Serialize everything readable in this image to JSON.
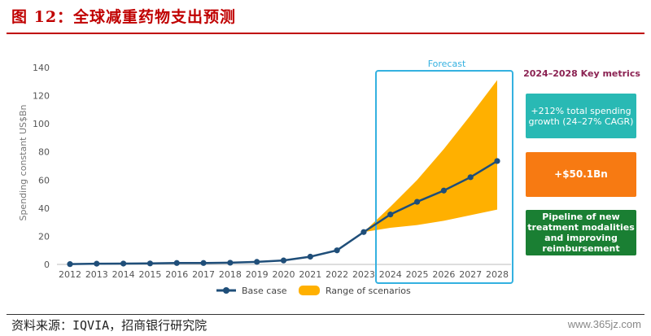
{
  "figure_title": "图 12：全球减重药物支出预测",
  "source": "资料来源：IQVIA，招商银行研究院",
  "watermark": "www.365jz.com",
  "colors": {
    "title_red": "#c00000",
    "base_line": "#1f4e79",
    "range_fill": "#ffb000",
    "forecast_border": "#34b1e0",
    "box1": "#29b9b4",
    "box2": "#f77a12",
    "box3": "#1a7f33",
    "metric_title": "#8b2252"
  },
  "key_metrics": {
    "title": "2024–2028 Key metrics",
    "box1": "+212% total spending growth (24–27% CAGR)",
    "box2": "+$50.1Bn",
    "box3": "Pipeline of new treatment modalities and improving reimbursement"
  },
  "chart_data": {
    "type": "line",
    "title": "",
    "ylabel": "Spending constant US$Bn",
    "xlabel": "",
    "ylim": [
      0,
      140
    ],
    "yticks": [
      0,
      20,
      40,
      60,
      80,
      100,
      120,
      140
    ],
    "categories": [
      "2012",
      "2013",
      "2014",
      "2015",
      "2016",
      "2017",
      "2018",
      "2019",
      "2020",
      "2021",
      "2022",
      "2023",
      "2024",
      "2025",
      "2026",
      "2027",
      "2028"
    ],
    "forecast_label": "Forecast",
    "forecast_start": "2024",
    "grid": false,
    "legend": "bottom",
    "series": [
      {
        "name": "Base case",
        "values": [
          0.2,
          0.5,
          0.6,
          0.7,
          1,
          1,
          1.2,
          1.8,
          2.8,
          5.5,
          10,
          23,
          35.5,
          44.5,
          52.5,
          62,
          73.5
        ]
      }
    ],
    "range": {
      "name": "Range of scenarios",
      "start": "2023",
      "years": [
        "2023",
        "2024",
        "2025",
        "2026",
        "2027",
        "2028"
      ],
      "low": [
        23,
        26,
        28,
        31,
        35,
        39
      ],
      "high": [
        23,
        41,
        60,
        82,
        106,
        131
      ]
    }
  }
}
